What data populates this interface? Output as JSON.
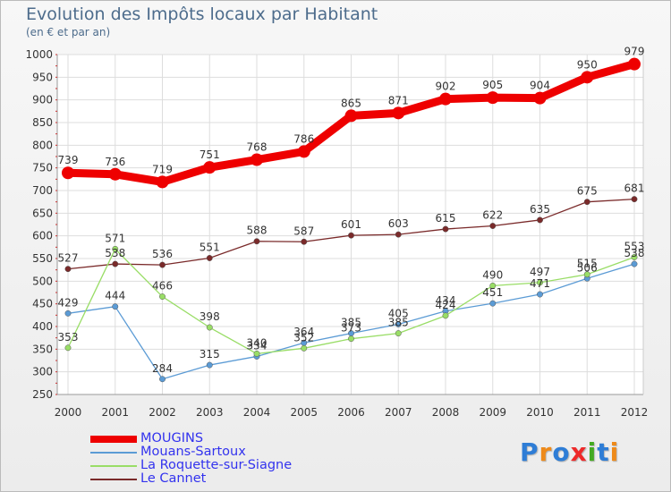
{
  "header": {
    "title": "Evolution des Impôts locaux par Habitant",
    "subtitle": "(en € et par an)"
  },
  "brand": {
    "text": "Proxiti",
    "colors": [
      "#2e7dd6",
      "#ee8a1a",
      "#2e7dd6",
      "#ee2a2a",
      "#44aa22",
      "#2e7dd6",
      "#ee8a1a"
    ]
  },
  "chart_data": {
    "type": "line",
    "x": [
      "2000",
      "2001",
      "2002",
      "2003",
      "2004",
      "2005",
      "2006",
      "2007",
      "2008",
      "2009",
      "2010",
      "2011",
      "2012"
    ],
    "ylim": [
      250,
      1000
    ],
    "yticks": [
      "250",
      "300",
      "350",
      "400",
      "450",
      "500",
      "550",
      "600",
      "650",
      "700",
      "750",
      "800",
      "850",
      "900",
      "950",
      "1000"
    ],
    "grid": true,
    "legend": "bottom-left",
    "series": [
      {
        "name": "MOUGINS",
        "color": "#ee0000",
        "values": [
          739,
          736,
          719,
          751,
          768,
          786,
          865,
          871,
          902,
          905,
          904,
          950,
          979
        ],
        "labels": [
          "739",
          "736",
          "719",
          "751",
          "768",
          "786",
          "865",
          "871",
          "902",
          "905",
          "904",
          "950",
          "979"
        ]
      },
      {
        "name": "Mouans-Sartoux",
        "color": "#5b9bd5",
        "values": [
          429,
          444,
          284,
          315,
          334,
          364,
          385,
          405,
          434,
          451,
          471,
          506,
          538
        ],
        "labels": [
          "429",
          "444",
          "284",
          "315",
          "334",
          "364",
          "385",
          "405",
          "434",
          "451",
          "471",
          "506",
          "538"
        ]
      },
      {
        "name": "La Roquette-sur-Siagne",
        "color": "#99dd66",
        "values": [
          353,
          571,
          466,
          398,
          340,
          352,
          373,
          385,
          424,
          490,
          497,
          515,
          553
        ],
        "labels": [
          "353",
          "571",
          "466",
          "398",
          "340",
          "352",
          "373",
          "385",
          "424",
          "490",
          "497",
          "515",
          "553"
        ]
      },
      {
        "name": "Le Cannet",
        "color": "#7a2a2a",
        "values": [
          527,
          538,
          536,
          551,
          588,
          587,
          601,
          603,
          615,
          622,
          635,
          675,
          681
        ],
        "labels": [
          "527",
          "538",
          "536",
          "551",
          "588",
          "587",
          "601",
          "603",
          "615",
          "622",
          "635",
          "675",
          "681"
        ]
      }
    ]
  }
}
